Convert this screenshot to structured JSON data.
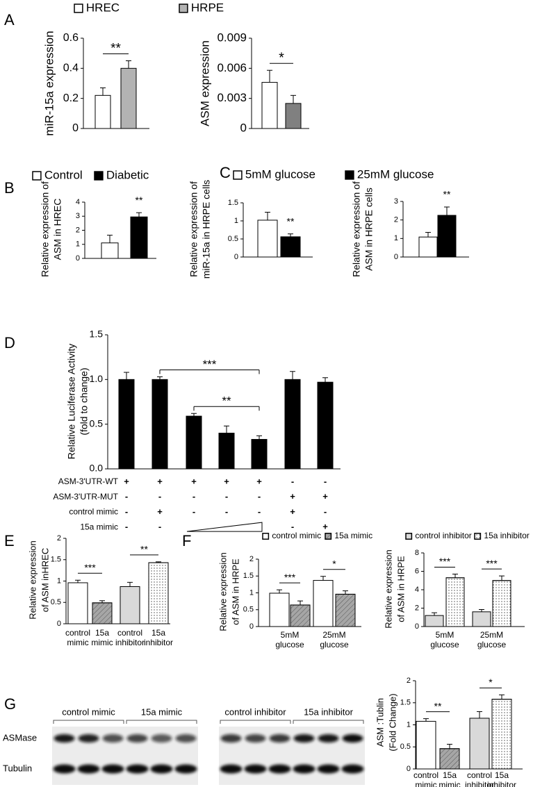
{
  "panels": [
    "A",
    "B",
    "C",
    "D",
    "E",
    "F",
    "G"
  ],
  "blot": {
    "groups": [
      "control mimic",
      "15a mimic",
      "control inhibitor",
      "15a inhibitor"
    ],
    "rows": [
      "ASMase",
      "Tubulin"
    ]
  },
  "chart_data": [
    {
      "type": "bar",
      "ylabel": [
        "miR-15a expression"
      ],
      "ylim": [
        0,
        0.6
      ],
      "yticks": [
        0,
        0.2,
        0.4,
        0.6
      ],
      "series": [
        {
          "name": "HREC",
          "color": "#ffffff",
          "values": [
            0.22
          ],
          "errors": [
            0.05
          ]
        },
        {
          "name": "HRPE",
          "color": "#b3b3b3",
          "values": [
            0.4
          ],
          "errors": [
            0.05
          ]
        }
      ],
      "brackets": [
        {
          "label": "**",
          "bars": [
            0,
            1
          ]
        }
      ]
    },
    {
      "type": "bar",
      "ylabel": [
        "ASM expression"
      ],
      "ylim": [
        0,
        0.009
      ],
      "yticks": [
        0,
        0.003,
        0.006,
        0.009
      ],
      "series": [
        {
          "color": "#ffffff",
          "values": [
            0.0046
          ],
          "errors": [
            0.0012
          ]
        },
        {
          "color": "#808080",
          "values": [
            0.0025
          ],
          "errors": [
            0.0008
          ]
        }
      ],
      "brackets": [
        {
          "label": "*",
          "bars": [
            0,
            1
          ]
        }
      ]
    },
    {
      "type": "bar",
      "ylabel": [
        "Relative expression of",
        "ASM in HREC"
      ],
      "ylim": [
        0,
        4
      ],
      "yticks": [
        0,
        1,
        2,
        3,
        4
      ],
      "series": [
        {
          "name": "Control",
          "color": "#ffffff",
          "values": [
            1.1
          ],
          "errors": [
            0.55
          ]
        },
        {
          "name": "Diabetic",
          "color": "#000000",
          "values": [
            2.95
          ],
          "errors": [
            0.3
          ]
        }
      ],
      "brackets": [
        {
          "label": "**",
          "bars": [
            1
          ]
        }
      ]
    },
    {
      "type": "bar",
      "ylabel": [
        "Relative expression of",
        "miR-15a in HRPE cells"
      ],
      "ylim": [
        0,
        1.5
      ],
      "yticks": [
        0,
        0.5,
        1,
        1.5
      ],
      "series": [
        {
          "name": "5mM glucose",
          "color": "#ffffff",
          "values": [
            1.02
          ],
          "errors": [
            0.22
          ]
        },
        {
          "name": "25mM glucose",
          "color": "#000000",
          "values": [
            0.56
          ],
          "errors": [
            0.08
          ]
        }
      ],
      "brackets": [
        {
          "label": "**",
          "bars": [
            1
          ]
        }
      ]
    },
    {
      "type": "bar",
      "ylabel": [
        "Relative expression of",
        "ASM in HRPE cells"
      ],
      "ylim": [
        0,
        3
      ],
      "yticks": [
        0,
        1,
        2,
        3
      ],
      "series": [
        {
          "color": "#ffffff",
          "values": [
            1.08
          ],
          "errors": [
            0.25
          ]
        },
        {
          "color": "#000000",
          "values": [
            2.25
          ],
          "errors": [
            0.45
          ]
        }
      ],
      "brackets": [
        {
          "label": "**",
          "bars": [
            1
          ]
        }
      ]
    },
    {
      "type": "bar",
      "ylabel": [
        "Relative Luciferase Activity",
        "(fold to change)"
      ],
      "ylim": [
        0,
        1.5
      ],
      "yticks": [
        {
          "value": 0,
          "label": "0.0"
        },
        0.5,
        {
          "value": 1,
          "label": "1.0"
        },
        1.5
      ],
      "series": [
        {
          "color": "#000000",
          "values": [
            1.0,
            1.0,
            0.59,
            0.4,
            0.33,
            1.0,
            0.97
          ],
          "errors": [
            0.08,
            0.03,
            0.03,
            0.08,
            0.04,
            0.09,
            0.05
          ]
        }
      ],
      "brackets": [
        {
          "label": "***",
          "bars": [
            1,
            4
          ]
        },
        {
          "label": "**",
          "bars": [
            2,
            4
          ]
        }
      ],
      "conditions": [
        {
          "label": "ASM-3'UTR-WT",
          "cells": [
            "+",
            "+",
            "+",
            "+",
            "+",
            "-",
            "-"
          ]
        },
        {
          "label": "ASM-3'UTR-MUT",
          "cells": [
            "-",
            "-",
            "-",
            "-",
            "-",
            "+",
            "+"
          ]
        },
        {
          "label": "control mimic",
          "cells": [
            "-",
            "+",
            "-",
            "-",
            "-",
            "+",
            "-"
          ]
        },
        {
          "label": "15a mimic",
          "cells": [
            "-",
            "-",
            null,
            null,
            null,
            "-",
            "+"
          ]
        }
      ]
    },
    {
      "type": "bar",
      "ylabel": [
        "Relative expression",
        "of ASM inHREC"
      ],
      "ylim": [
        0,
        2
      ],
      "yticks": [
        0,
        0.5,
        1,
        1.5,
        2
      ],
      "categories": [
        [
          "control",
          "mimic"
        ],
        [
          "15a",
          "mimic"
        ],
        [
          "control",
          "inhibitor"
        ],
        [
          "15a",
          "inhibitor"
        ]
      ],
      "series": [
        {
          "colors": [
            "#ffffff",
            "#a6a6a6",
            "#d9d9d9",
            "#ffffff"
          ],
          "patterns": [
            null,
            "hatch",
            null,
            "dots"
          ],
          "values": [
            0.96,
            0.49,
            0.87,
            1.43
          ],
          "errors": [
            0.06,
            0.05,
            0.1,
            0.02
          ]
        }
      ],
      "brackets": [
        {
          "label": "***",
          "bars": [
            0,
            1
          ]
        },
        {
          "label": "**",
          "bars": [
            2,
            3
          ]
        }
      ]
    },
    {
      "type": "bar",
      "ylabel": [
        "Relative expression",
        "of ASM in HRPE"
      ],
      "ylim": [
        0,
        2
      ],
      "yticks": [
        0,
        0.5,
        1,
        1.5,
        2
      ],
      "categories": [
        [
          "5mM",
          "glucose"
        ],
        [
          "25mM",
          "glucose"
        ]
      ],
      "series": [
        {
          "name": "control mimic",
          "color": "#ffffff",
          "values": [
            0.99,
            1.37
          ],
          "errors": [
            0.1,
            0.12
          ]
        },
        {
          "name": "15a mimic",
          "color": "#a6a6a6",
          "pattern": "hatch",
          "values": [
            0.64,
            0.96
          ],
          "errors": [
            0.12,
            0.1
          ]
        }
      ],
      "brackets": [
        {
          "label": "***",
          "bars": [
            0,
            1
          ]
        },
        {
          "label": "*",
          "bars": [
            2,
            3
          ]
        }
      ]
    },
    {
      "type": "bar",
      "ylabel": [
        "Relative expression",
        "of ASM in HRPE"
      ],
      "ylim": [
        0,
        8
      ],
      "yticks": [
        0,
        2,
        4,
        6,
        8
      ],
      "categories": [
        [
          "5mM",
          "glucose"
        ],
        [
          "25mM",
          "glucose"
        ]
      ],
      "series": [
        {
          "name": "control inhibitor",
          "color": "#d9d9d9",
          "values": [
            1.2,
            1.6
          ],
          "errors": [
            0.3,
            0.25
          ]
        },
        {
          "name": "15a inhibitor",
          "color": "#ffffff",
          "pattern": "dots",
          "values": [
            5.3,
            5.0
          ],
          "errors": [
            0.4,
            0.5
          ]
        }
      ],
      "brackets": [
        {
          "label": "***",
          "bars": [
            0,
            1
          ]
        },
        {
          "label": "***",
          "bars": [
            2,
            3
          ]
        }
      ]
    },
    {
      "type": "bar",
      "ylabel": [
        "ASM :Tublin",
        "(Fold Change)"
      ],
      "ylim": [
        0,
        2
      ],
      "yticks": [
        0,
        0.5,
        1,
        1.5,
        2
      ],
      "categories": [
        [
          "control",
          "mimic"
        ],
        [
          "15a",
          "mimic"
        ],
        [
          "control",
          "inhibitor"
        ],
        [
          "15a",
          "inhibitor"
        ]
      ],
      "series": [
        {
          "colors": [
            "#ffffff",
            "#a6a6a6",
            "#d9d9d9",
            "#ffffff"
          ],
          "patterns": [
            null,
            "hatch",
            null,
            "dots"
          ],
          "values": [
            1.08,
            0.46,
            1.15,
            1.58
          ],
          "errors": [
            0.06,
            0.1,
            0.15,
            0.1
          ]
        }
      ],
      "brackets": [
        {
          "label": "**",
          "bars": [
            0,
            1
          ]
        },
        {
          "label": "*",
          "bars": [
            2,
            3
          ]
        }
      ]
    }
  ]
}
